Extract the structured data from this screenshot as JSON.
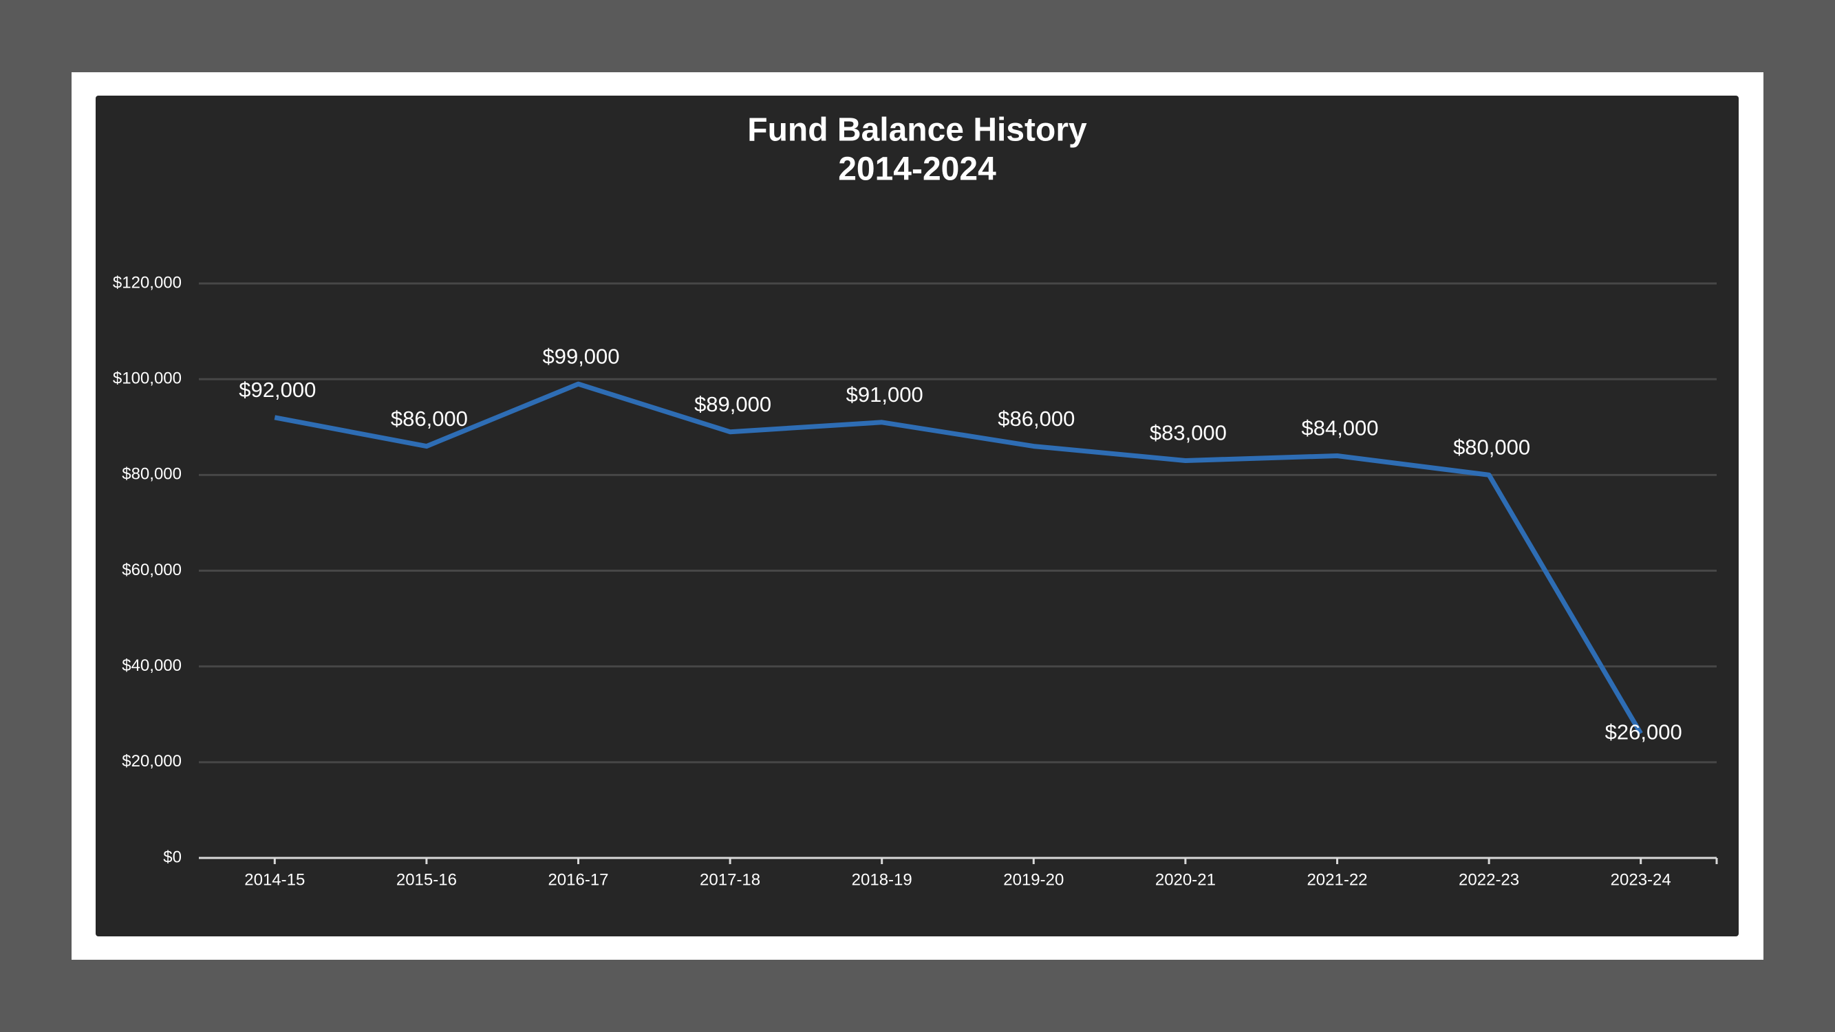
{
  "chart_data": {
    "type": "line",
    "title": "Fund Balance History",
    "subtitle": "2014-2024",
    "categories": [
      "2014-15",
      "2015-16",
      "2016-17",
      "2017-18",
      "2018-19",
      "2019-20",
      "2020-21",
      "2021-22",
      "2022-23",
      "2023-24"
    ],
    "series": [
      {
        "name": "Fund Balance",
        "color": "#2e6db4",
        "values": [
          92000,
          86000,
          99000,
          89000,
          91000,
          86000,
          83000,
          84000,
          80000,
          26000
        ],
        "value_labels": [
          "$92,000",
          "$86,000",
          "$99,000",
          "$89,000",
          "$91,000",
          "$86,000",
          "$83,000",
          "$84,000",
          "$80,000",
          "$26,000"
        ]
      }
    ],
    "ylim": [
      0,
      120000
    ],
    "yticks": [
      {
        "value": 0,
        "label": "$0"
      },
      {
        "value": 20000,
        "label": "$20,000"
      },
      {
        "value": 40000,
        "label": "$40,000"
      },
      {
        "value": 60000,
        "label": "$60,000"
      },
      {
        "value": 80000,
        "label": "$80,000"
      },
      {
        "value": 100000,
        "label": "$100,000"
      },
      {
        "value": 120000,
        "label": "$120,000"
      }
    ],
    "grid": true
  }
}
